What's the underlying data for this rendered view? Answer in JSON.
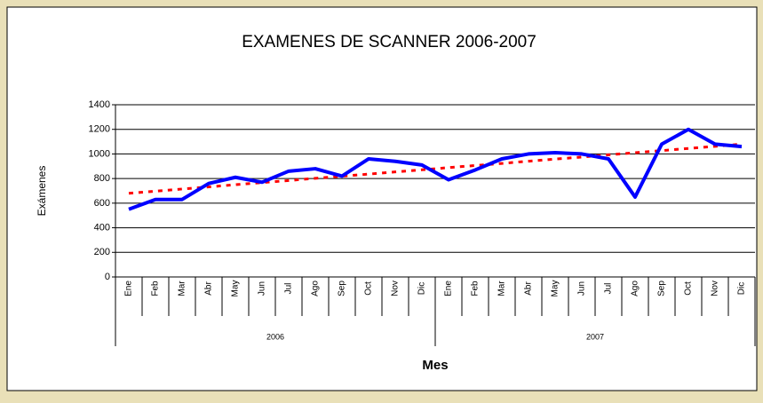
{
  "chart_data": {
    "type": "line",
    "title": "EXAMENES DE SCANNER 2006-2007",
    "y_label": "Exámenes",
    "x_label": "Mes",
    "categories": [
      "Ene",
      "Feb",
      "Mar",
      "Abr",
      "May",
      "Jun",
      "Jul",
      "Ago",
      "Sep",
      "Oct",
      "Nov",
      "Dic",
      "Ene",
      "Feb",
      "Mar",
      "Abr",
      "May",
      "Jun",
      "Jul",
      "Ago",
      "Sep",
      "Oct",
      "Nov",
      "Dic"
    ],
    "category_groups": [
      "2006",
      "2007"
    ],
    "series": [
      {
        "color": "#0000ff",
        "values": [
          550,
          630,
          630,
          760,
          810,
          770,
          860,
          880,
          820,
          960,
          940,
          910,
          790,
          870,
          960,
          1000,
          1010,
          1000,
          960,
          650,
          1080,
          1200,
          1080,
          1060
        ]
      },
      {
        "color": "#ff0000",
        "dashed": true,
        "values": [
          680,
          697,
          715,
          732,
          750,
          767,
          784,
          802,
          819,
          836,
          854,
          871,
          889,
          906,
          923,
          941,
          958,
          975,
          993,
          1010,
          1027,
          1045,
          1062,
          1080
        ]
      }
    ],
    "ylim": [
      0,
      1400
    ],
    "yticks": [
      0,
      200,
      400,
      600,
      800,
      1000,
      1200,
      1400
    ],
    "grid": true
  }
}
